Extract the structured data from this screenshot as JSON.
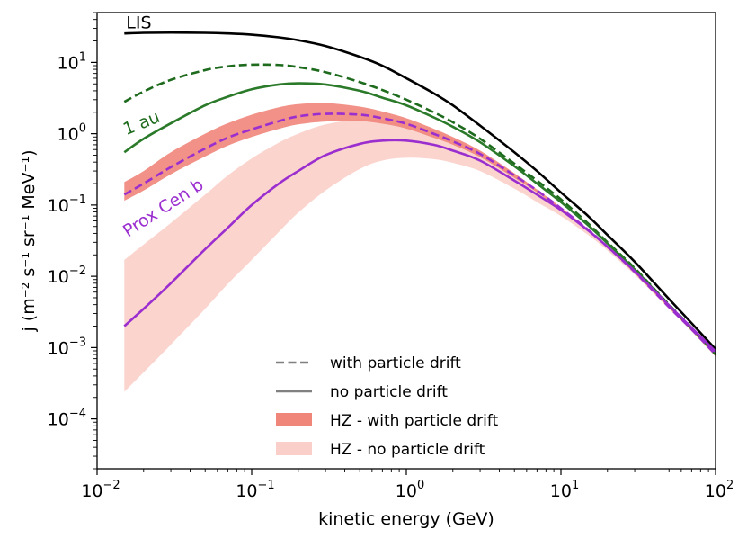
{
  "chart_data": {
    "type": "line",
    "xscale": "log",
    "yscale": "log",
    "xlim": [
      0.01,
      100
    ],
    "ylim": [
      2e-05,
      50
    ],
    "xlabel": "kinetic energy (GeV)",
    "ylabel": "j (m⁻² s⁻¹ sr⁻¹ MeV⁻¹)",
    "x_ticks": [
      {
        "value": 0.01,
        "base": "10",
        "exp": "-2"
      },
      {
        "value": 0.1,
        "base": "10",
        "exp": "-1"
      },
      {
        "value": 1,
        "base": "10",
        "exp": "0"
      },
      {
        "value": 10,
        "base": "10",
        "exp": "1"
      },
      {
        "value": 100,
        "base": "10",
        "exp": "2"
      }
    ],
    "y_ticks": [
      {
        "value": 0.0001,
        "base": "10",
        "exp": "-4"
      },
      {
        "value": 0.001,
        "base": "10",
        "exp": "-3"
      },
      {
        "value": 0.01,
        "base": "10",
        "exp": "-2"
      },
      {
        "value": 0.1,
        "base": "10",
        "exp": "-1"
      },
      {
        "value": 1,
        "base": "10",
        "exp": "0"
      },
      {
        "value": 10,
        "base": "10",
        "exp": "1"
      }
    ],
    "x": [
      0.015,
      0.02,
      0.03,
      0.05,
      0.07,
      0.1,
      0.15,
      0.2,
      0.3,
      0.5,
      0.7,
      1,
      1.5,
      2,
      3,
      5,
      7,
      10,
      15,
      20,
      30,
      50,
      70,
      100
    ],
    "series": [
      {
        "name": "LIS",
        "color": "#000000",
        "dash": false,
        "values": [
          25.5,
          26,
          26.2,
          26,
          25.5,
          24.5,
          22.5,
          20.5,
          17,
          12,
          9,
          6,
          3.7,
          2.5,
          1.3,
          0.55,
          0.3,
          0.15,
          0.07,
          0.038,
          0.016,
          0.0048,
          0.0022,
          0.00095
        ]
      },
      {
        "name": "1 au (with particle drift)",
        "color": "#1e6b1e",
        "dash": true,
        "values": [
          2.8,
          3.9,
          5.7,
          7.8,
          8.8,
          9.3,
          9.2,
          8.6,
          7.3,
          5.3,
          4.1,
          3.0,
          2.0,
          1.45,
          0.85,
          0.38,
          0.22,
          0.12,
          0.055,
          0.03,
          0.013,
          0.004,
          0.0019,
          0.0008
        ]
      },
      {
        "name": "1 au (no particle drift)",
        "color": "#2a7a2a",
        "dash": false,
        "values": [
          0.55,
          0.85,
          1.4,
          2.5,
          3.3,
          4.2,
          4.9,
          5.1,
          4.9,
          4.0,
          3.2,
          2.5,
          1.7,
          1.25,
          0.76,
          0.35,
          0.2,
          0.11,
          0.052,
          0.029,
          0.0125,
          0.0039,
          0.00185,
          0.00085
        ]
      },
      {
        "name": "Prox Cen b (with particle drift)",
        "color": "#9b2ecf",
        "dash": true,
        "values": [
          0.14,
          0.2,
          0.34,
          0.62,
          0.88,
          1.15,
          1.5,
          1.75,
          1.9,
          1.85,
          1.65,
          1.38,
          1.0,
          0.78,
          0.52,
          0.26,
          0.16,
          0.09,
          0.045,
          0.026,
          0.0115,
          0.0037,
          0.0018,
          0.0008
        ]
      },
      {
        "name": "Prox Cen b (no particle drift)",
        "color": "#9b2ecf",
        "dash": false,
        "values": [
          0.002,
          0.0035,
          0.008,
          0.024,
          0.048,
          0.1,
          0.2,
          0.3,
          0.5,
          0.72,
          0.8,
          0.8,
          0.7,
          0.58,
          0.42,
          0.22,
          0.14,
          0.085,
          0.044,
          0.026,
          0.0118,
          0.0039,
          0.0019,
          0.00088
        ]
      }
    ],
    "bands": [
      {
        "name": "HZ - with particle drift",
        "color": "#f0857a",
        "opacity": 0.9,
        "upper": [
          0.21,
          0.3,
          0.55,
          1.0,
          1.4,
          1.85,
          2.35,
          2.6,
          2.7,
          2.4,
          2.05,
          1.65,
          1.18,
          0.9,
          0.58,
          0.28,
          0.165,
          0.093,
          0.046,
          0.0265,
          0.0117,
          0.0038,
          0.0018,
          0.0008
        ],
        "lower": [
          0.115,
          0.16,
          0.27,
          0.48,
          0.68,
          0.9,
          1.17,
          1.35,
          1.48,
          1.5,
          1.38,
          1.18,
          0.88,
          0.7,
          0.47,
          0.24,
          0.15,
          0.085,
          0.043,
          0.025,
          0.011,
          0.0036,
          0.0017,
          0.00075
        ]
      },
      {
        "name": "HZ - no particle drift",
        "color": "#fbcfc9",
        "opacity": 0.9,
        "upper": [
          0.017,
          0.028,
          0.056,
          0.14,
          0.26,
          0.45,
          0.75,
          1.0,
          1.35,
          1.6,
          1.55,
          1.4,
          1.1,
          0.86,
          0.56,
          0.27,
          0.16,
          0.09,
          0.046,
          0.0265,
          0.0118,
          0.0038,
          0.0018,
          0.0008
        ],
        "lower": [
          0.00024,
          0.00045,
          0.0011,
          0.0035,
          0.0078,
          0.017,
          0.042,
          0.078,
          0.16,
          0.32,
          0.42,
          0.46,
          0.44,
          0.39,
          0.3,
          0.17,
          0.11,
          0.07,
          0.038,
          0.023,
          0.0105,
          0.0035,
          0.0017,
          0.00075
        ]
      }
    ],
    "annotations": [
      {
        "text": "LIS",
        "color": "#000000",
        "x": 0.015,
        "y": 30,
        "rotate": 0
      },
      {
        "text": "1 au",
        "color": "#1e6b1e",
        "x": 0.015,
        "y": 0.95,
        "rotate": -22
      },
      {
        "text": "Prox Cen b",
        "color": "#9b2ecf",
        "x": 0.015,
        "y": 0.035,
        "rotate": -33
      }
    ],
    "legend": {
      "position": "lower-center",
      "entries": [
        {
          "label": "with particle drift",
          "kind": "line",
          "dash": true,
          "color": "#808080"
        },
        {
          "label": "no particle drift",
          "kind": "line",
          "dash": false,
          "color": "#808080"
        },
        {
          "label": "HZ - with particle drift",
          "kind": "patch",
          "color": "#f0857a"
        },
        {
          "label": "HZ - no particle drift",
          "kind": "patch",
          "color": "#fbcfc9"
        }
      ]
    }
  }
}
